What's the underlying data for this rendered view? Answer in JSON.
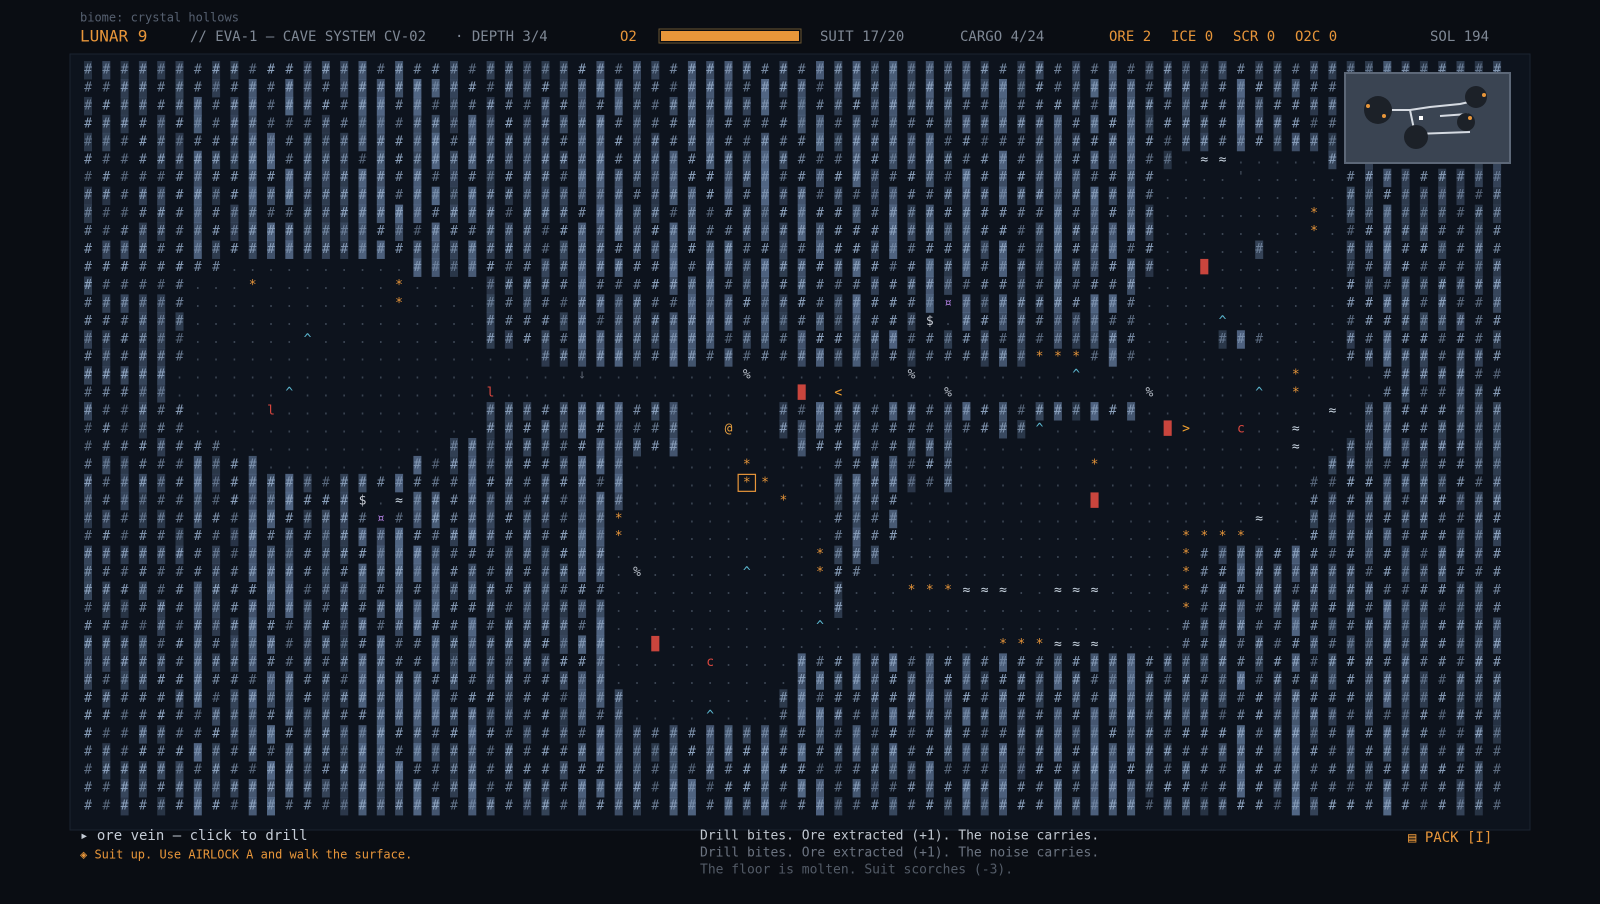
{
  "header": {
    "biome": "biome: crystal hollows",
    "title": "LUNAR 9",
    "mission": "// EVA-1 — CAVE SYSTEM CV-02",
    "depth": "· DEPTH 3/4",
    "o2_label": "O2",
    "suit": "SUIT 17/20",
    "cargo": "CARGO 4/24",
    "resources": [
      "ORE 2",
      "ICE 0",
      "SCR 0",
      "O2C 0"
    ],
    "sol": "SOL 194"
  },
  "map": {
    "selected": {
      "row": 23,
      "col": 36
    },
    "rows": [
      "##############################################################################",
      "##############################################################################",
      "##############################################################################",
      "##############################################################################",
      "##############################################################################",
      "############################################################.≈≈.....##########",
      "###########################################################....'.....#########",
      "###########################################################..........#########",
      "###########################################################........*.#########",
      "###########################################################........*.#########",
      "###########################################################.....#....#########",
      "########..........#########################################..█.......#########",
      "######...*.......*....####################################...........#########",
      "######...........*....#########################¤##########...........#########",
      "######................########################$.##########....^......#########",
      "######......^.........####################################....###....#########",
      "######...................###########################***###...........#########",
      "#####......................↓........%........%........^...........*....#######",
      "#####......^..........l................█.<.....%..........%.....^.*....#######",
      "######....l...........###########.....####################..........≈.########",
      "######................###########..@..##############^......█>..c..≈...########",
      "########............#############......#########..................≈..#########",
      "##########........############......*....#######.......*............##########",
      "##############################......**...#######...................###########",
      "###############$.≈############........*..####..........█...........###########",
      "################¤############*...........####...................≈..###########",
      "#############################*...........####...............****...###########",
      "#############################...........*###................*#################",
      "#############################.%.....^...*##.................*#################",
      "#############################............#...***≈≈≈..≈≈≈....*#################",
      "#############################............#..................*#################",
      "#############################...........^...................##################",
      "#############################..█..................***≈≈≈....##################",
      "#############################.....c....#######################################",
      "#############################..........#######################################",
      "##############################........########################################",
      "##############################....^...########################################",
      "##############################################################################",
      "##############################################################################",
      "##############################################################################",
      "##############################################################################",
      "##############################################################################"
    ]
  },
  "footer": {
    "hover": "▸ ore vein — click to drill",
    "hint": "◈ Suit up. Use AIRLOCK A and walk the surface.",
    "log": [
      "Drill bites. Ore extracted (+1). The noise carries.",
      "Drill bites. Ore extracted (+1). The noise carries.",
      "The floor is molten. Suit scorches (-3)."
    ],
    "pack": "▤ PACK [I]"
  }
}
